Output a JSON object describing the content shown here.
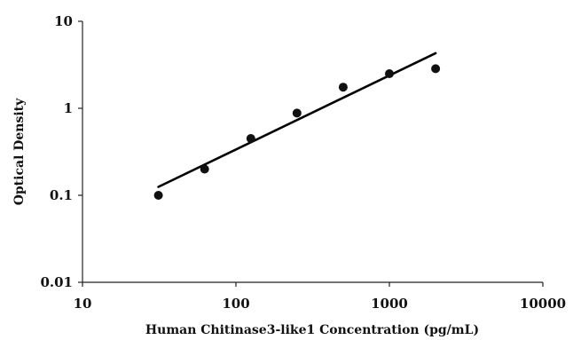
{
  "chart_data": {
    "type": "scatter",
    "xlabel": "Human Chitinase3-like1 Concentration (pg/mL)",
    "ylabel": "Optical Density",
    "x_scale": "log",
    "y_scale": "log",
    "xlim": [
      10,
      10000
    ],
    "ylim": [
      0.01,
      10
    ],
    "x_ticks": [
      10,
      100,
      1000,
      10000
    ],
    "y_ticks": [
      0.01,
      0.1,
      1,
      10
    ],
    "x_tick_labels": [
      "10",
      "100",
      "1000",
      "10000"
    ],
    "y_tick_labels": [
      "0.01",
      "0.1",
      "1",
      "10"
    ],
    "grid": false,
    "legend": "none",
    "series": [
      {
        "type": "scatter",
        "x": [
          31.25,
          62.5,
          125,
          250,
          500,
          1000,
          2000
        ],
        "y": [
          0.1,
          0.2,
          0.45,
          0.88,
          1.75,
          2.5,
          2.85
        ]
      },
      {
        "type": "line",
        "x": [
          31.25,
          2000
        ],
        "y": [
          0.125,
          4.3
        ]
      }
    ],
    "colors": {
      "points": "#111111",
      "line": "#000000",
      "axes": "#222222"
    }
  }
}
